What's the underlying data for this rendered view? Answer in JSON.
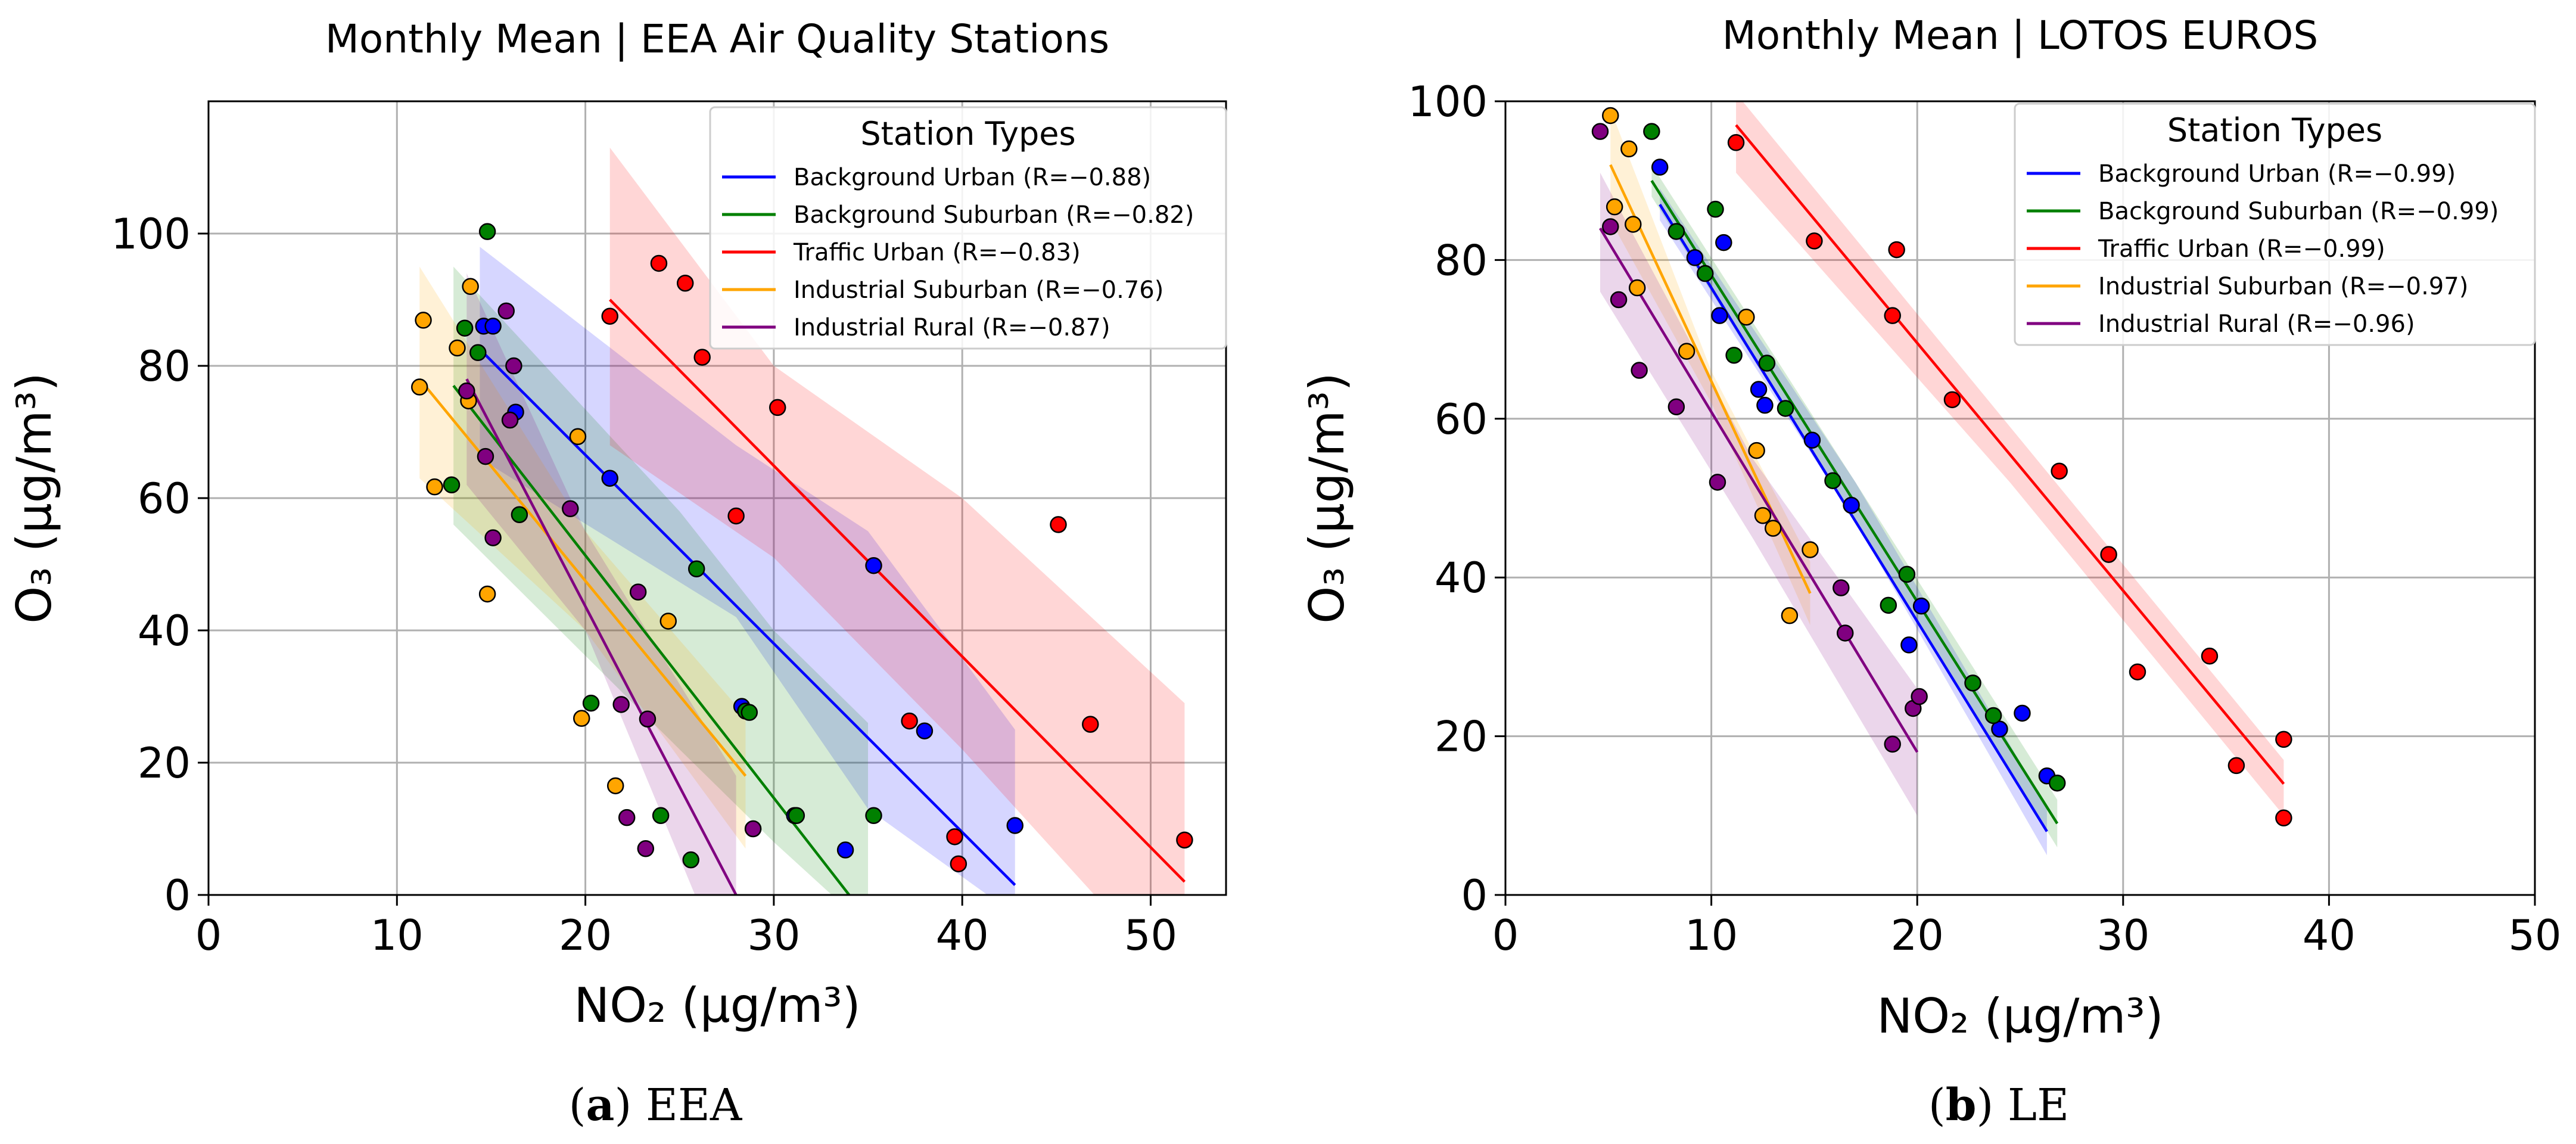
{
  "captions": [
    {
      "letter": "a",
      "rest": " EEA"
    },
    {
      "letter": "b",
      "rest": " LE"
    }
  ],
  "chart_data": [
    {
      "type": "scatter",
      "title": "Monthly Mean | EEA Air Quality Stations",
      "xlabel": "NO₂ (µg/m³)",
      "ylabel": "O₃ (µg/m³)",
      "xlim": [
        0,
        54
      ],
      "ylim": [
        0,
        120
      ],
      "xticks": [
        0,
        10,
        20,
        30,
        40,
        50
      ],
      "yticks": [
        0,
        20,
        40,
        60,
        80,
        100
      ],
      "grid": true,
      "legend_title": "Station Types",
      "legend_position": "top-right",
      "series": [
        {
          "name": "Background Urban (R=−0.88)",
          "color": "#0000ff",
          "x": [
            14.6,
            15.1,
            16.3,
            21.3,
            28.3,
            31.1,
            33.8,
            35.3,
            38.0,
            42.8
          ],
          "y": [
            86.0,
            86.0,
            73.0,
            63.0,
            28.5,
            12.0,
            6.8,
            49.8,
            24.8,
            10.5
          ],
          "fit": {
            "x": [
              14.4,
              42.8
            ],
            "y": [
              82.5,
              1.5
            ]
          },
          "band": {
            "x": [
              14.4,
              28.0,
              35.0,
              42.8
            ],
            "upper": [
              98.0,
              68.0,
              55.0,
              25.0
            ],
            "lower": [
              66.0,
              42.0,
              13.0,
              -3.0
            ]
          }
        },
        {
          "name": "Background Suburban (R=−0.82)",
          "color": "#008000",
          "x": [
            12.9,
            13.6,
            14.3,
            14.8,
            16.5,
            20.3,
            24.0,
            25.6,
            25.9,
            28.5,
            28.7,
            31.2,
            35.3
          ],
          "y": [
            62.0,
            85.7,
            82.0,
            100.3,
            57.5,
            29.0,
            12.0,
            5.3,
            49.3,
            27.8,
            27.6,
            12.0,
            12.0
          ],
          "fit": {
            "x": [
              13.0,
              34.0
            ],
            "y": [
              77.0,
              0.0
            ]
          },
          "band": {
            "x": [
              13.0,
              25.0,
              30.0,
              35.0
            ],
            "upper": [
              95.0,
              58.0,
              40.0,
              26.0
            ],
            "lower": [
              56.0,
              22.0,
              8.0,
              -5.0
            ]
          }
        },
        {
          "name": "Traffic Urban (R=−0.83)",
          "color": "#ff0000",
          "x": [
            21.3,
            23.9,
            25.3,
            26.2,
            28.0,
            30.2,
            37.2,
            39.6,
            39.8,
            45.1,
            46.8,
            51.8
          ],
          "y": [
            87.5,
            95.5,
            92.5,
            81.3,
            57.3,
            73.7,
            26.3,
            8.8,
            4.7,
            56.0,
            25.8,
            8.3
          ],
          "fit": {
            "x": [
              21.3,
              51.8
            ],
            "y": [
              90.0,
              2.0
            ]
          },
          "band": {
            "x": [
              21.3,
              30.0,
              40.0,
              51.8
            ],
            "upper": [
              113.0,
              80.0,
              60.0,
              29.0
            ],
            "lower": [
              68.0,
              51.0,
              22.0,
              -15.0
            ]
          }
        },
        {
          "name": "Industrial Suburban (R=−0.76)",
          "color": "#ffa500",
          "x": [
            11.2,
            11.4,
            12.0,
            13.2,
            13.8,
            13.9,
            14.8,
            19.6,
            19.8,
            21.6,
            24.4
          ],
          "y": [
            76.8,
            86.9,
            61.7,
            82.7,
            74.7,
            92.0,
            45.5,
            69.3,
            26.7,
            16.5,
            41.4
          ],
          "fit": {
            "x": [
              11.2,
              28.5
            ],
            "y": [
              78.0,
              18.0
            ]
          },
          "band": {
            "x": [
              11.2,
              20.0,
              28.5
            ],
            "upper": [
              95.0,
              55.0,
              27.0
            ],
            "lower": [
              63.0,
              40.0,
              7.0
            ]
          }
        },
        {
          "name": "Industrial Rural (R=−0.87)",
          "color": "#800080",
          "x": [
            13.7,
            14.7,
            15.1,
            15.8,
            16.0,
            16.2,
            19.2,
            21.9,
            22.2,
            22.8,
            23.2,
            23.3,
            28.9
          ],
          "y": [
            76.2,
            66.3,
            54.0,
            88.3,
            71.8,
            80.0,
            58.4,
            28.8,
            11.7,
            45.8,
            7.0,
            26.6,
            10.0
          ],
          "fit": {
            "x": [
              13.7,
              28.0
            ],
            "y": [
              78.0,
              0.0
            ]
          },
          "band": {
            "x": [
              13.7,
              20.0,
              28.0
            ],
            "upper": [
              94.0,
              55.0,
              18.0
            ],
            "lower": [
              62.0,
              40.0,
              -15.0
            ]
          }
        }
      ]
    },
    {
      "type": "scatter",
      "title": "Monthly Mean | LOTOS EUROS",
      "xlabel": "NO₂ (µg/m³)",
      "ylabel": "O₃ (µg/m³)",
      "xlim": [
        0,
        50
      ],
      "ylim": [
        0,
        100
      ],
      "xticks": [
        0,
        10,
        20,
        30,
        40,
        50
      ],
      "yticks": [
        0,
        20,
        40,
        60,
        80,
        100
      ],
      "grid": true,
      "legend_title": "Station Types",
      "legend_position": "top-right",
      "series": [
        {
          "name": "Background Urban (R=−0.99)",
          "color": "#0000ff",
          "x": [
            7.5,
            9.2,
            10.4,
            10.6,
            12.3,
            12.6,
            14.9,
            16.8,
            19.6,
            20.2,
            24.0,
            25.1,
            26.3
          ],
          "y": [
            91.7,
            80.3,
            73.0,
            82.2,
            63.7,
            61.7,
            57.3,
            49.1,
            31.5,
            36.4,
            20.9,
            22.9,
            15.0
          ],
          "fit": {
            "x": [
              7.5,
              26.3
            ],
            "y": [
              87.0,
              8.0
            ]
          },
          "band": {
            "x": [
              7.5,
              17.0,
              26.3
            ],
            "upper": [
              89.0,
              52.0,
              11.0
            ],
            "lower": [
              85.0,
              47.0,
              5.0
            ]
          }
        },
        {
          "name": "Background Suburban (R=−0.99)",
          "color": "#008000",
          "x": [
            7.1,
            8.3,
            9.7,
            10.2,
            11.1,
            12.7,
            13.6,
            15.9,
            18.6,
            19.5,
            22.7,
            23.7,
            26.8
          ],
          "y": [
            96.2,
            83.6,
            78.3,
            86.4,
            68.0,
            67.0,
            61.3,
            52.2,
            36.5,
            40.4,
            26.7,
            22.6,
            14.1
          ],
          "fit": {
            "x": [
              7.1,
              26.8
            ],
            "y": [
              90.0,
              9.0
            ]
          },
          "band": {
            "x": [
              7.1,
              17.0,
              26.8
            ],
            "upper": [
              92.0,
              52.0,
              12.0
            ],
            "lower": [
              88.0,
              47.0,
              6.0
            ]
          }
        },
        {
          "name": "Traffic Urban (R=−0.99)",
          "color": "#ff0000",
          "x": [
            11.2,
            15.0,
            18.8,
            19.0,
            21.7,
            26.9,
            29.3,
            30.7,
            34.2,
            35.5,
            37.8,
            37.8
          ],
          "y": [
            94.8,
            82.4,
            73.0,
            81.3,
            62.4,
            53.4,
            42.9,
            28.1,
            30.1,
            16.3,
            19.6,
            9.7
          ],
          "fit": {
            "x": [
              11.2,
              37.8
            ],
            "y": [
              97.0,
              14.0
            ]
          },
          "band": {
            "x": [
              11.2,
              24.5,
              37.8
            ],
            "upper": [
              101.0,
              59.0,
              17.0
            ],
            "lower": [
              91.0,
              52.0,
              10.0
            ]
          }
        },
        {
          "name": "Industrial Suburban (R=−0.97)",
          "color": "#ffa500",
          "x": [
            5.1,
            5.3,
            6.0,
            6.2,
            6.4,
            8.8,
            11.7,
            12.2,
            12.5,
            13.0,
            13.8,
            14.8
          ],
          "y": [
            98.2,
            86.7,
            94.0,
            84.5,
            76.5,
            68.5,
            72.8,
            56.0,
            47.8,
            46.2,
            35.2,
            43.5
          ],
          "fit": {
            "x": [
              5.1,
              14.8
            ],
            "y": [
              92.0,
              38.0
            ]
          },
          "band": {
            "x": [
              5.1,
              10.0,
              14.8
            ],
            "upper": [
              99.0,
              66.0,
              42.0
            ],
            "lower": [
              85.0,
              62.0,
              34.0
            ]
          }
        },
        {
          "name": "Industrial Rural (R=−0.96)",
          "color": "#800080",
          "x": [
            4.6,
            5.1,
            5.5,
            6.5,
            8.3,
            10.3,
            16.3,
            16.5,
            18.8,
            19.8,
            20.1
          ],
          "y": [
            96.2,
            84.2,
            75.0,
            66.1,
            61.5,
            52.0,
            38.7,
            33.0,
            19.0,
            23.5,
            25.0
          ],
          "fit": {
            "x": [
              4.6,
              20.0
            ],
            "y": [
              84.0,
              18.0
            ]
          },
          "band": {
            "x": [
              4.6,
              12.0,
              20.0
            ],
            "upper": [
              91.0,
              55.0,
              26.0
            ],
            "lower": [
              76.0,
              45.0,
              10.0
            ]
          }
        }
      ]
    }
  ]
}
